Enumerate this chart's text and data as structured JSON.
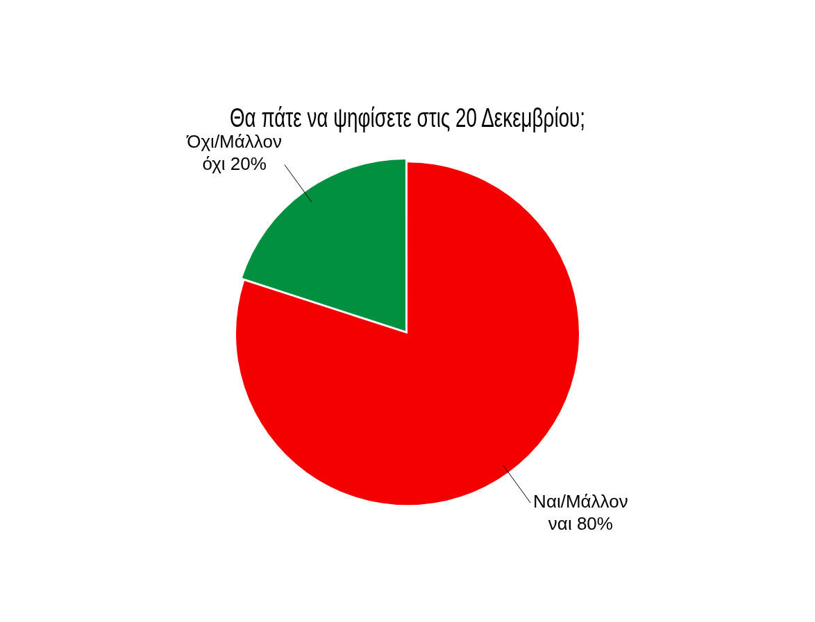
{
  "chart_data": {
    "type": "pie",
    "title": "Θα πάτε να ψηφίσετε στις 20 Δεκεμβρίου;",
    "categories": [
      "Ναι/Μάλλον ναι",
      "Όχι/Μάλλον όχι"
    ],
    "values": [
      80,
      20
    ],
    "value_labels": [
      "80%",
      "20%"
    ],
    "colors": [
      "#f50000",
      "#009040"
    ]
  }
}
